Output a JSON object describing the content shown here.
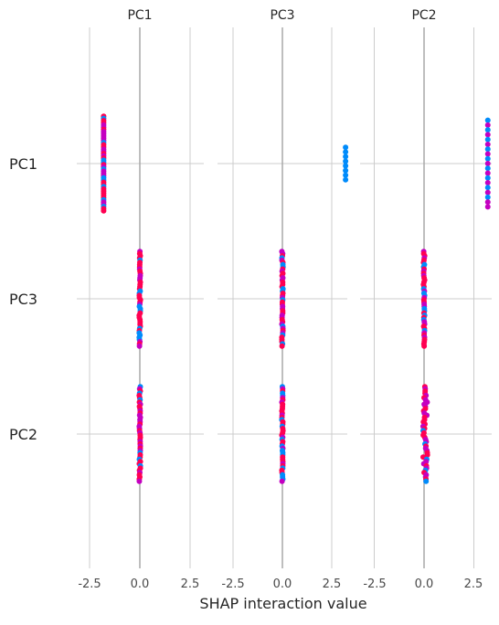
{
  "chart_data": {
    "type": "scatter",
    "title": "",
    "xlabel": "SHAP interaction value",
    "ylabel": "",
    "grid": true,
    "xlim": [
      -3.4,
      3.9
    ],
    "xticks": [
      "-2.5",
      "0.0",
      "2.5"
    ],
    "panel_titles": [
      "PC1",
      "PC3",
      "PC2"
    ],
    "row_labels": [
      "PC1",
      "PC3",
      "PC2"
    ],
    "colors": {
      "high": "#ff0052",
      "low": "#008bfb",
      "mid": "#c400c0"
    },
    "cells": [
      [
        {
          "x": -1.8,
          "spread": 0.0,
          "y_half": 0.35,
          "mix": "mixed"
        },
        {
          "x": 3.2,
          "spread": 0.0,
          "y_half": 0.12,
          "mix": "low"
        },
        {
          "x": 3.2,
          "spread": 0.0,
          "y_half": 0.32,
          "mix": "grad"
        }
      ],
      [
        {
          "x": 0.0,
          "spread": 0.03,
          "y_half": 0.35,
          "mix": "mixed"
        },
        {
          "x": 0.0,
          "spread": 0.03,
          "y_half": 0.35,
          "mix": "mixed"
        },
        {
          "x": 0.0,
          "spread": 0.03,
          "y_half": 0.35,
          "mix": "mixed"
        }
      ],
      [
        {
          "x": 0.0,
          "spread": 0.03,
          "y_half": 0.35,
          "mix": "mixed"
        },
        {
          "x": 0.0,
          "spread": 0.03,
          "y_half": 0.35,
          "mix": "mixed"
        },
        {
          "x": 0.05,
          "spread": 0.12,
          "y_half": 0.35,
          "mix": "mixed"
        }
      ]
    ]
  }
}
